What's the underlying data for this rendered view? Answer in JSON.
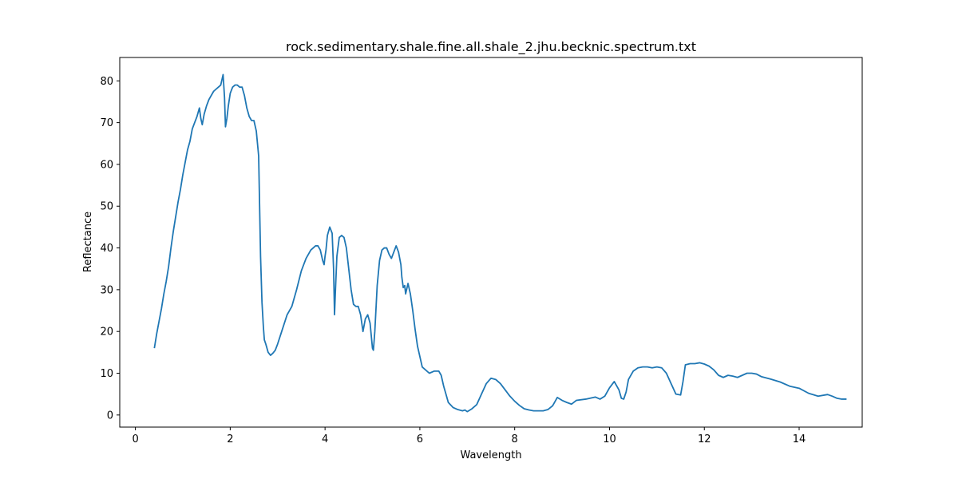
{
  "chart_data": {
    "type": "line",
    "title": "rock.sedimentary.shale.fine.all.shale_2.jhu.becknic.spectrum.txt",
    "xlabel": "Wavelength",
    "ylabel": "Reflectance",
    "xlim": [
      -0.33,
      15.33
    ],
    "ylim": [
      -2.9,
      85.6
    ],
    "xticks": [
      0,
      2,
      4,
      6,
      8,
      10,
      12,
      14
    ],
    "yticks": [
      0,
      10,
      20,
      30,
      40,
      50,
      60,
      70,
      80
    ],
    "grid": false,
    "line_color": "#1f77b4",
    "series": [
      {
        "x": [
          0.4,
          0.45,
          0.5,
          0.55,
          0.6,
          0.65,
          0.7,
          0.75,
          0.8,
          0.85,
          0.9,
          0.95,
          1.0,
          1.05,
          1.1,
          1.15,
          1.2,
          1.25,
          1.3,
          1.35,
          1.38,
          1.41,
          1.45,
          1.5,
          1.55,
          1.6,
          1.65,
          1.7,
          1.75,
          1.8,
          1.85,
          1.88,
          1.9,
          1.93,
          1.96,
          2.0,
          2.05,
          2.1,
          2.15,
          2.2,
          2.25,
          2.3,
          2.35,
          2.4,
          2.45,
          2.5,
          2.55,
          2.6,
          2.62,
          2.64,
          2.67,
          2.7,
          2.72,
          2.75,
          2.8,
          2.85,
          2.9,
          2.95,
          3.0,
          3.1,
          3.2,
          3.3,
          3.4,
          3.5,
          3.55,
          3.6,
          3.7,
          3.8,
          3.85,
          3.9,
          3.95,
          3.98,
          4.0,
          4.02,
          4.05,
          4.1,
          4.15,
          4.18,
          4.2,
          4.22,
          4.25,
          4.3,
          4.35,
          4.4,
          4.45,
          4.5,
          4.55,
          4.6,
          4.65,
          4.7,
          4.75,
          4.8,
          4.85,
          4.9,
          4.95,
          5.0,
          5.02,
          5.05,
          5.1,
          5.15,
          5.2,
          5.25,
          5.3,
          5.35,
          5.4,
          5.45,
          5.5,
          5.55,
          5.6,
          5.62,
          5.65,
          5.68,
          5.7,
          5.75,
          5.8,
          5.85,
          5.9,
          5.95,
          6.0,
          6.05,
          6.1,
          6.2,
          6.3,
          6.4,
          6.45,
          6.5,
          6.55,
          6.6,
          6.7,
          6.8,
          6.9,
          6.95,
          7.0,
          7.1,
          7.2,
          7.3,
          7.4,
          7.5,
          7.6,
          7.7,
          7.8,
          7.9,
          8.0,
          8.1,
          8.2,
          8.3,
          8.4,
          8.5,
          8.6,
          8.7,
          8.8,
          8.9,
          9.0,
          9.1,
          9.2,
          9.3,
          9.5,
          9.7,
          9.8,
          9.9,
          10.0,
          10.1,
          10.2,
          10.25,
          10.3,
          10.35,
          10.4,
          10.5,
          10.6,
          10.7,
          10.8,
          10.9,
          11.0,
          11.1,
          11.2,
          11.3,
          11.4,
          11.5,
          11.55,
          11.6,
          11.7,
          11.8,
          11.9,
          12.0,
          12.1,
          12.2,
          12.3,
          12.4,
          12.5,
          12.6,
          12.7,
          12.8,
          12.9,
          13.0,
          13.1,
          13.2,
          13.4,
          13.6,
          13.8,
          14.0,
          14.2,
          14.4,
          14.6,
          14.7,
          14.8,
          14.9,
          15.0
        ],
        "y": [
          16,
          19.5,
          22.5,
          25.5,
          29,
          32,
          35.5,
          40,
          44,
          47.5,
          51,
          54,
          57.5,
          60.5,
          63.5,
          65.5,
          68.5,
          70,
          71.5,
          73.5,
          71,
          69.5,
          72,
          74,
          75.5,
          76.5,
          77.5,
          78,
          78.5,
          79,
          81.5,
          76,
          69,
          71,
          74,
          77,
          78.5,
          79,
          79,
          78.5,
          78.5,
          76.5,
          73.5,
          71.5,
          70.5,
          70.5,
          68,
          62,
          50,
          38,
          27,
          21,
          18,
          17,
          15,
          14.3,
          14.8,
          15.5,
          17,
          20.5,
          24,
          26,
          30,
          34.5,
          36,
          37.5,
          39.5,
          40.5,
          40.5,
          39.5,
          37,
          36,
          38,
          39.5,
          43,
          45,
          43.5,
          35,
          24,
          30,
          38,
          42.5,
          43,
          42.5,
          40,
          35,
          30,
          26.5,
          26,
          26,
          24,
          20,
          23,
          24,
          22,
          16,
          15.5,
          20,
          31,
          37,
          39.5,
          40,
          40,
          38.5,
          37.5,
          39,
          40.5,
          39,
          36,
          33,
          30.5,
          31,
          29,
          31.5,
          29,
          25,
          20.5,
          16.5,
          14,
          11.5,
          11,
          10,
          10.5,
          10.5,
          9.5,
          7,
          5,
          3,
          1.8,
          1.3,
          1.0,
          1.2,
          0.8,
          1.5,
          2.5,
          5,
          7.5,
          8.8,
          8.5,
          7.5,
          6,
          4.5,
          3.3,
          2.3,
          1.5,
          1.2,
          1.0,
          1.0,
          1.0,
          1.3,
          2.2,
          4.2,
          3.5,
          3.0,
          2.6,
          3.5,
          3.8,
          4.3,
          3.8,
          4.5,
          6.5,
          8.0,
          6.0,
          4.0,
          3.8,
          5.5,
          8.5,
          10.5,
          11.3,
          11.5,
          11.5,
          11.3,
          11.5,
          11.3,
          10.0,
          7.5,
          5.0,
          4.8,
          8.0,
          12.0,
          12.3,
          12.3,
          12.5,
          12.2,
          11.7,
          10.8,
          9.5,
          9.0,
          9.5,
          9.3,
          9.0,
          9.5,
          10.0,
          10.0,
          9.8,
          9.2,
          8.6,
          7.9,
          6.9,
          6.4,
          5.2,
          4.5,
          4.9,
          4.5,
          4.0,
          3.8,
          3.8
        ]
      }
    ]
  }
}
